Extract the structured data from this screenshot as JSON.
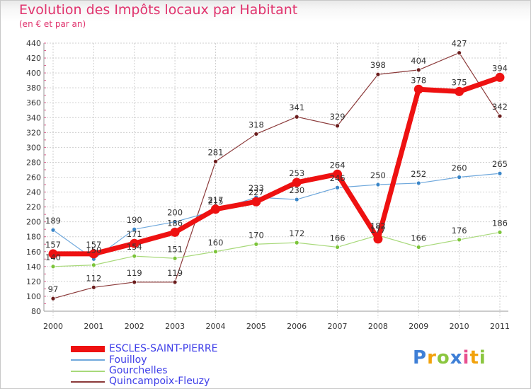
{
  "title": "Evolution des Impôts locaux par Habitant",
  "subtitle": "(en € et par an)",
  "logo": {
    "text": "Proxiti",
    "letters": [
      "P",
      "r",
      "o",
      "x",
      "i",
      "t",
      "i"
    ],
    "colors": [
      "#3e7fd6",
      "#f2a20c",
      "#8bc63f",
      "#3e7fd6",
      "#e84f8f",
      "#f2a20c",
      "#8bc63f"
    ]
  },
  "chart_data": {
    "type": "line",
    "categories": [
      "2000",
      "2001",
      "2002",
      "2003",
      "2004",
      "2005",
      "2006",
      "2007",
      "2008",
      "2009",
      "2010",
      "2011"
    ],
    "ylim": [
      80,
      440
    ],
    "yticks": [
      80,
      100,
      120,
      140,
      160,
      180,
      200,
      220,
      240,
      260,
      280,
      300,
      320,
      340,
      360,
      380,
      400,
      420,
      440
    ],
    "grid": true,
    "legend_position": "bottom-left",
    "series": [
      {
        "name": "ESCLES-SAINT-PIERRE",
        "color": "#ee1111",
        "width": 7,
        "marker_r": 6.5,
        "values": [
          157,
          157,
          171,
          186,
          217,
          227,
          253,
          264,
          177,
          378,
          375,
          394
        ],
        "labels": [
          "157",
          "157",
          "171",
          "186",
          "217",
          "227",
          "253",
          "264",
          "177",
          "378",
          "375",
          "394"
        ]
      },
      {
        "name": "Fouilloy",
        "color": "#6fa8dc",
        "marker": "#3a86c8",
        "width": 1.2,
        "marker_r": 3,
        "values": [
          189,
          150,
          190,
          200,
          215,
          233,
          230,
          246,
          250,
          252,
          260,
          265
        ],
        "labels": [
          "189",
          "150",
          "190",
          "200",
          "215",
          "233",
          "230",
          "246",
          "250",
          "252",
          "260",
          "265"
        ]
      },
      {
        "name": "Gourchelles",
        "color": "#a8d97a",
        "marker": "#7cc43a",
        "width": 1.2,
        "marker_r": 3,
        "values": [
          140,
          142,
          154,
          151,
          160,
          170,
          172,
          166,
          182,
          166,
          176,
          186
        ],
        "labels": [
          "140",
          "",
          "154",
          "151",
          "160",
          "170",
          "172",
          "166",
          "182",
          "166",
          "176",
          "186"
        ]
      },
      {
        "name": "Quincampoix-Fleuzy",
        "color": "#8b3a3a",
        "marker": "#6b1d1d",
        "width": 1.2,
        "marker_r": 3,
        "values": [
          97,
          112,
          119,
          119,
          281,
          318,
          341,
          329,
          398,
          404,
          427,
          342
        ],
        "labels": [
          "97",
          "112",
          "119",
          "119",
          "281",
          "318",
          "341",
          "329",
          "398",
          "404",
          "427",
          "342"
        ]
      }
    ]
  }
}
